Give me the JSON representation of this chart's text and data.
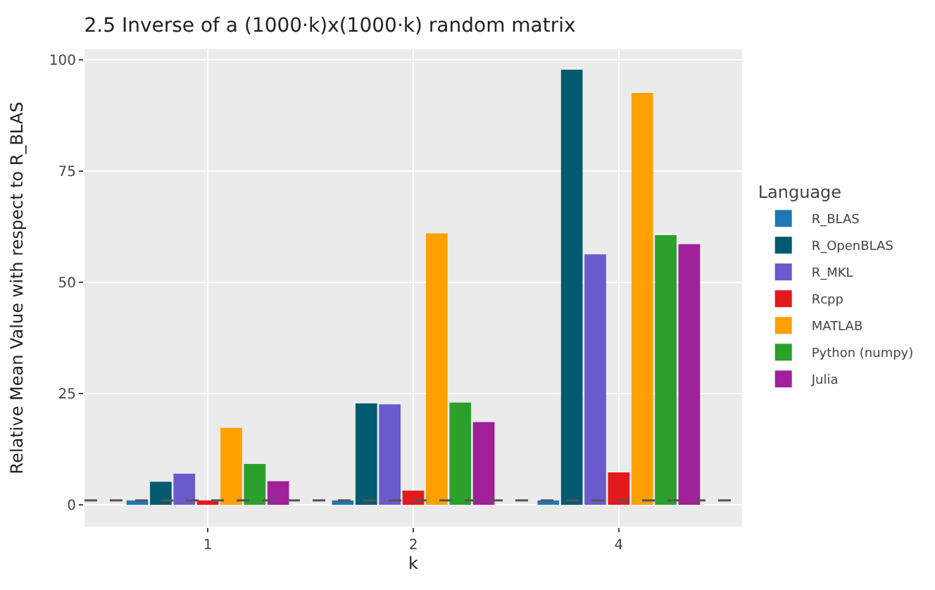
{
  "chart_data": {
    "type": "bar",
    "title": "2.5 Inverse of a (1000·k)x(1000·k) random matrix",
    "xlabel": "k",
    "ylabel": "Relative Mean Value with respect to R_BLAS",
    "legend_title": "Language",
    "categories": [
      "1",
      "2",
      "4"
    ],
    "series": [
      {
        "name": "R_BLAS",
        "color": "#1f78b4",
        "values": [
          1,
          1,
          1
        ]
      },
      {
        "name": "R_OpenBLAS",
        "color": "#045a70",
        "values": [
          5.2,
          22.8,
          97.8
        ]
      },
      {
        "name": "R_MKL",
        "color": "#6a5acd",
        "values": [
          7,
          22.6,
          56.3
        ]
      },
      {
        "name": "Rcpp",
        "color": "#e31a1c",
        "values": [
          1,
          3.2,
          7.3
        ]
      },
      {
        "name": "MATLAB",
        "color": "#ffa000",
        "values": [
          17.3,
          61,
          92.6
        ]
      },
      {
        "name": "Python (numpy)",
        "color": "#2ca02c",
        "values": [
          9.2,
          23,
          60.6
        ]
      },
      {
        "name": "Julia",
        "color": "#a0209a",
        "values": [
          5.3,
          18.6,
          58.6
        ]
      }
    ],
    "ylim": [
      -4.9,
      102.4
    ],
    "yticks": [
      0,
      25,
      50,
      75,
      100
    ],
    "grid": true,
    "legend": "right",
    "ref_lines": [
      {
        "axis": "y",
        "value": 1,
        "color": "#555555",
        "line_style": "dashed"
      }
    ]
  }
}
